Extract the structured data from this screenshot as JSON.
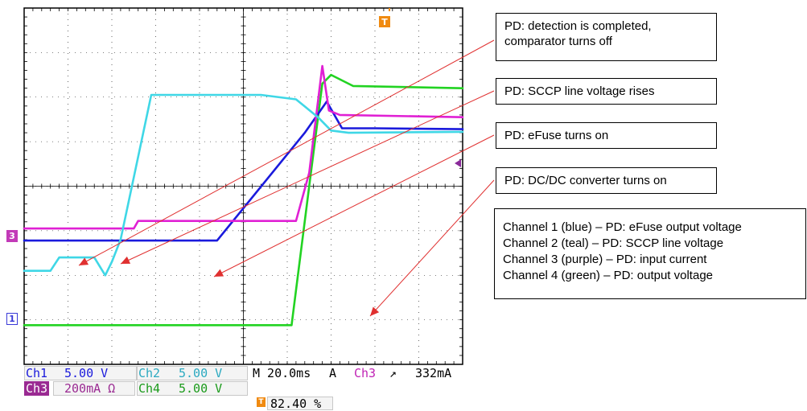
{
  "chart_data": {
    "type": "line",
    "title": "",
    "xlabel": "",
    "ylabel": "",
    "time_per_div_ms": 20,
    "grid": true,
    "divisions": {
      "x": 10,
      "y": 8
    },
    "series": [
      {
        "name": "Ch1",
        "color": "#1a1adc",
        "points": [
          [
            0,
            -1.22
          ],
          [
            2.2,
            -1.22
          ],
          [
            4.4,
            -1.22
          ],
          [
            6.4,
            1.2
          ],
          [
            6.9,
            1.9
          ],
          [
            7.25,
            1.3
          ],
          [
            8,
            1.3
          ],
          [
            10,
            1.28
          ]
        ]
      },
      {
        "name": "Ch2",
        "color": "#3fd7e6",
        "points": [
          [
            0,
            -1.9
          ],
          [
            0.6,
            -1.9
          ],
          [
            0.8,
            -1.6
          ],
          [
            1.6,
            -1.6
          ],
          [
            1.85,
            -2.0
          ],
          [
            2.0,
            -1.7
          ],
          [
            2.2,
            -1.2
          ],
          [
            2.9,
            2.05
          ],
          [
            5.4,
            2.05
          ],
          [
            6.2,
            1.95
          ],
          [
            6.7,
            1.55
          ],
          [
            7.0,
            1.25
          ],
          [
            7.4,
            1.2
          ],
          [
            10,
            1.22
          ]
        ]
      },
      {
        "name": "Ch3",
        "color": "#e020d4",
        "points": [
          [
            0,
            -0.95
          ],
          [
            1.5,
            -0.95
          ],
          [
            2.5,
            -0.95
          ],
          [
            2.6,
            -0.78
          ],
          [
            4.2,
            -0.78
          ],
          [
            6.2,
            -0.78
          ],
          [
            6.5,
            0.3
          ],
          [
            6.8,
            2.7
          ],
          [
            6.95,
            1.7
          ],
          [
            7.2,
            1.6
          ],
          [
            10,
            1.55
          ]
        ]
      },
      {
        "name": "Ch4",
        "color": "#22d322",
        "points": [
          [
            0,
            -3.12
          ],
          [
            6.1,
            -3.12
          ],
          [
            6.5,
            0.0
          ],
          [
            6.8,
            2.3
          ],
          [
            7.0,
            2.5
          ],
          [
            7.5,
            2.25
          ],
          [
            10,
            2.2
          ]
        ]
      }
    ]
  },
  "readout": {
    "ch1_label": "Ch1",
    "ch1_value": "5.00 V",
    "ch2_label": "Ch2",
    "ch2_value": "5.00 V",
    "ch3_label": "Ch3",
    "ch3_value": "200mA Ω",
    "ch4_label": "Ch4",
    "ch4_value": "5.00 V",
    "timebase": "M 20.0ms",
    "trigger_mode": "A",
    "trigger_source": "Ch3",
    "trigger_slope": "↗",
    "trigger_level": "332mA",
    "trigger_position": "82.40 %"
  },
  "markers": {
    "ch3_marker": "3",
    "ch1_marker": "1",
    "trigger_marker": "T"
  },
  "annotations": [
    {
      "lines": [
        "PD: detection is completed,",
        "comparator turns off"
      ]
    },
    {
      "lines": [
        "PD: SCCP line voltage rises"
      ]
    },
    {
      "lines": [
        "PD: eFuse turns on"
      ]
    },
    {
      "lines": [
        "PD: DC/DC converter turns on"
      ]
    }
  ],
  "legend_box": {
    "lines": [
      "Channel 1 (blue) – PD: eFuse output voltage",
      "Channel 2 (teal) – PD: SCCP line voltage",
      "Channel 3 (purple) – PD: input current",
      "Channel 4 (green) – PD: output voltage"
    ]
  },
  "colors": {
    "grid": "#000000",
    "ch1": "#1a1adc",
    "ch2": "#3fd7e6",
    "ch3": "#e020d4",
    "ch4": "#22d322",
    "arrow": "#e03030",
    "trigger": "#f08a10"
  }
}
